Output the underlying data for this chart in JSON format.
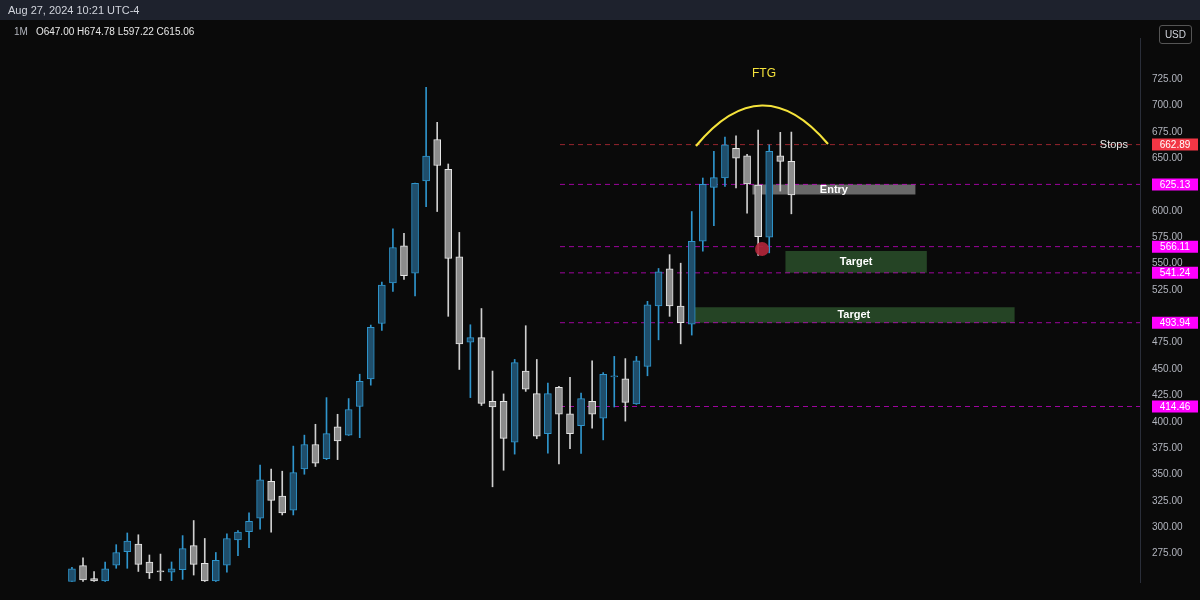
{
  "chart_data": {
    "type": "candlestick",
    "title": "1M",
    "subtitle": "O647.00 H674.78 L597.22 C615.06",
    "ylabel": "USD",
    "annotations": [
      "Aug 27, 2024 10:21 UTC-4",
      "FTG",
      "662.89",
      "625.13",
      "566.11",
      "541.24",
      "493.94",
      "414.46"
    ],
    "categories": [
      null,
      null,
      null,
      null,
      null,
      null,
      null,
      null,
      null,
      null,
      null,
      null,
      null,
      null,
      null,
      null,
      null,
      null,
      null,
      null,
      null,
      null,
      null,
      null,
      null,
      null,
      null,
      null,
      null,
      null,
      null,
      null,
      null,
      null,
      null,
      null,
      null,
      null,
      null,
      null,
      null,
      null,
      null,
      null,
      null,
      null,
      null,
      null,
      null,
      null,
      null,
      null,
      null,
      null,
      null,
      null,
      null,
      null,
      null,
      null,
      null,
      null,
      null,
      null,
      null,
      null,
      null,
      null,
      null,
      null,
      null,
      null,
      null,
      null,
      null,
      null,
      null,
      null,
      null,
      null,
      null,
      null,
      null,
      null,
      null,
      null,
      null,
      null,
      null,
      null,
      null,
      null,
      null,
      null,
      null,
      null,
      null,
      null,
      null,
      null,
      null,
      null,
      null
    ],
    "ohlc": [
      null,
      null,
      null,
      null,
      null,
      null,
      [
        248.5,
        262,
        248.5,
        260.5
      ],
      [
        263.5,
        271,
        248.5,
        250
      ],
      [
        251.3,
        258,
        248.5,
        249
      ],
      [
        249,
        267,
        248.5,
        260.5
      ],
      [
        264,
        283.4,
        261,
        276
      ],
      [
        276.8,
        294.5,
        261,
        286.8
      ],
      [
        284,
        292.8,
        258,
        264.7
      ],
      [
        266.8,
        273.6,
        251.3,
        256.7
      ],
      [
        258.5,
        274.5,
        249.3,
        257.5
      ],
      [
        257.3,
        267,
        249.3,
        260.5
      ],
      [
        259.6,
        292,
        250.5,
        279.6
      ],
      [
        282.5,
        306.3,
        254.6,
        264.7
      ],
      [
        265.6,
        289.3,
        248.5,
        249
      ],
      [
        249,
        276,
        248.5,
        268.6
      ],
      [
        264,
        293.8,
        257.3,
        289.3
      ],
      [
        287.8,
        296.7,
        272.9,
        295.3
      ],
      [
        295.8,
        313.6,
        280.5,
        305.6
      ],
      [
        308.6,
        359,
        298.2,
        344.8
      ],
      [
        343.6,
        355.2,
        295.3,
        325.5
      ],
      [
        329.4,
        353.1,
        311.6,
        313.6
      ],
      [
        316.1,
        376.9,
        311.6,
        351.7
      ],
      [
        355.2,
        387.3,
        350.2,
        378.4
      ],
      [
        378.4,
        397.6,
        357.6,
        360.6
      ],
      [
        365,
        422.9,
        364,
        388.7
      ],
      [
        395.3,
        407.1,
        364.1,
        381.9
      ],
      [
        387.3,
        422,
        387,
        411.6
      ],
      [
        414.5,
        445.1,
        384.9,
        438.3
      ],
      [
        440.7,
        491.7,
        434.7,
        489.6
      ],
      [
        493.2,
        532.6,
        486.6,
        529.7
      ],
      [
        531.7,
        583.1,
        523.7,
        565.3
      ],
      [
        566.8,
        578.7,
        535,
        538.6
      ],
      [
        540.9,
        626.5,
        519.3,
        626.1
      ],
      [
        628.5,
        717.3,
        603.9,
        652
      ],
      [
        667.7,
        684,
        599.4,
        643.1
      ],
      [
        639.5,
        644.5,
        500,
        554.9
      ],
      [
        556.4,
        579.6,
        449.6,
        473.9
      ],
      [
        475.4,
        492,
        422.9,
        479.8
      ],
      [
        479.8,
        507.4,
        415.4,
        417.5
      ],
      [
        419.3,
        448.1,
        338.3,
        414
      ],
      [
        419.3,
        426.4,
        354,
        384.3
      ],
      [
        380.6,
        459.1,
        369.3,
        456.1
      ],
      [
        448.1,
        491.1,
        428.8,
        430.9
      ],
      [
        426.7,
        459.1,
        384,
        386.4
      ],
      [
        388.7,
        436.8,
        370.2,
        426.7
      ],
      [
        432.7,
        433.5,
        360,
        407.1
      ],
      [
        407.4,
        442.1,
        374.5,
        388.7
      ],
      [
        396.2,
        427.3,
        370,
        422
      ],
      [
        419.3,
        457.9,
        393.8,
        407.1
      ],
      [
        403.5,
        446.6,
        382.8,
        445.1
      ],
      [
        442.5,
        462,
        414,
        443.5
      ],
      [
        440.7,
        459.9,
        400.6,
        418.4
      ],
      [
        416.9,
        462,
        416.5,
        457.9
      ],
      [
        452.5,
        514.2,
        443.6,
        511
      ],
      [
        509.8,
        545.4,
        477.7,
        542.2
      ],
      [
        545,
        558.5,
        500,
        509.8
      ],
      [
        509.8,
        550.4,
        473.9,
        494.1
      ],
      [
        492.6,
        599.4,
        482.2,
        571.2
      ],
      [
        571.2,
        631.2,
        561.8,
        625.2
      ],
      [
        622.3,
        656.4,
        586,
        631.5
      ],
      [
        631.2,
        670,
        623.2,
        662.6
      ],
      [
        659.3,
        671.2,
        621.7,
        649.9
      ],
      [
        652.2,
        653.7,
        597.9,
        625.5
      ],
      [
        624.6,
        676.6,
        557.8,
        575.6
      ],
      [
        575,
        662.6,
        560.2,
        656.6
      ],
      [
        652.2,
        674.5,
        618.8,
        646.9
      ],
      [
        647,
        674.78,
        597.22,
        615.06
      ],
      null,
      null,
      null,
      null,
      null,
      null,
      null,
      null,
      null,
      null,
      null,
      null,
      null,
      null,
      null,
      null,
      null,
      null,
      null,
      null,
      null,
      null,
      null,
      null,
      null,
      null,
      null,
      null,
      null,
      null,
      null
    ],
    "ylim": [
      248,
      764
    ],
    "yticks": [
      {
        "value": 275,
        "label": "275.00"
      },
      {
        "value": 300,
        "label": "300.00"
      },
      {
        "value": 325,
        "label": "325.00"
      },
      {
        "value": 350,
        "label": "350.00"
      },
      {
        "value": 375,
        "label": "375.00"
      },
      {
        "value": 400,
        "label": "400.00"
      },
      {
        "value": 425,
        "label": "425.00"
      },
      {
        "value": 450,
        "label": "450.00"
      },
      {
        "value": 475,
        "label": "475.00"
      },
      {
        "value": 525,
        "label": "525.00"
      },
      {
        "value": 550,
        "label": "550.00"
      },
      {
        "value": 575,
        "label": "575.00"
      },
      {
        "value": 600,
        "label": "600.00"
      },
      {
        "value": 650,
        "label": "650.00"
      },
      {
        "value": 675,
        "label": "675.00"
      },
      {
        "value": 700,
        "label": "700.00"
      },
      {
        "value": 725,
        "label": "725.00"
      }
    ],
    "tick_labels": "y",
    "ref_lines": [
      {
        "axis": "y",
        "value": 662.89,
        "label": "Stops",
        "color": "#f23645",
        "line_style": "dashed"
      },
      {
        "axis": "y",
        "value": 625.13,
        "color": "#ff00ff",
        "line_style": "dashed"
      },
      {
        "axis": "y",
        "value": 566.11,
        "color": "#ff00ff",
        "line_style": "dashed"
      },
      {
        "axis": "y",
        "value": 541.24,
        "color": "#ff00ff",
        "line_style": "dashed"
      },
      {
        "axis": "y",
        "value": 493.94,
        "color": "#ff00ff",
        "line_style": "dashed"
      },
      {
        "axis": "y",
        "value": 414.46,
        "color": "#ff00ff",
        "line_style": "dashed"
      }
    ],
    "bands": [
      {
        "axis": "y",
        "from": 615.5,
        "to": 625.13,
        "label": "Entry",
        "color": "#7a7a7a"
      },
      {
        "axis": "y",
        "from": 541.24,
        "to": 562,
        "label": "Target",
        "color": "#2a4f2a"
      },
      {
        "axis": "y",
        "from": 493.94,
        "to": 508.6,
        "label": "Target",
        "color": "#2a4f2a"
      }
    ]
  }
}
